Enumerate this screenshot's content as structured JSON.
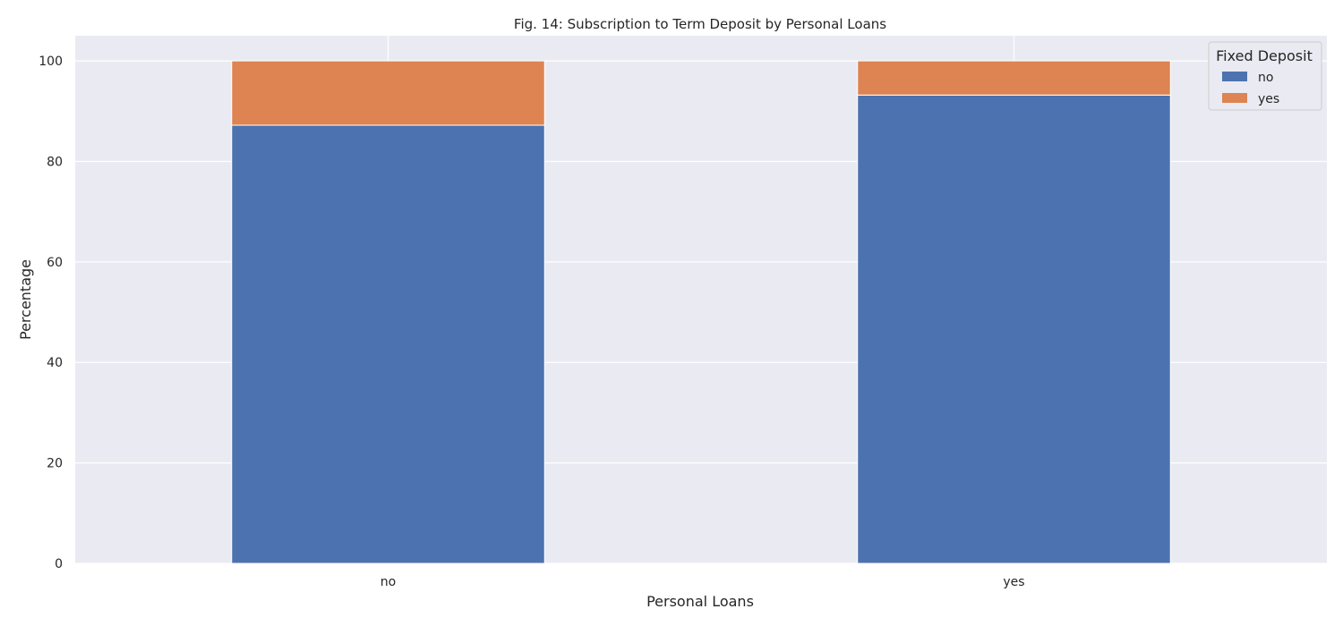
{
  "chart_data": {
    "type": "bar",
    "stacked": true,
    "title": "Fig. 14: Subscription to Term Deposit by Personal Loans",
    "xlabel": "Personal Loans",
    "ylabel": "Percentage",
    "categories": [
      "no",
      "yes"
    ],
    "series": [
      {
        "name": "no",
        "values": [
          87.2,
          93.2
        ]
      },
      {
        "name": "yes",
        "values": [
          12.8,
          6.8
        ]
      }
    ],
    "ylim": [
      0,
      105
    ],
    "yticks": [
      0,
      20,
      40,
      60,
      80,
      100
    ],
    "grid": true,
    "legend": {
      "title": "Fixed Deposit",
      "placement": "top-right"
    }
  },
  "colors": {
    "background": "#eaeaf2",
    "grid": "#ffffff",
    "series": [
      "#4c72b0",
      "#dd8452"
    ]
  }
}
